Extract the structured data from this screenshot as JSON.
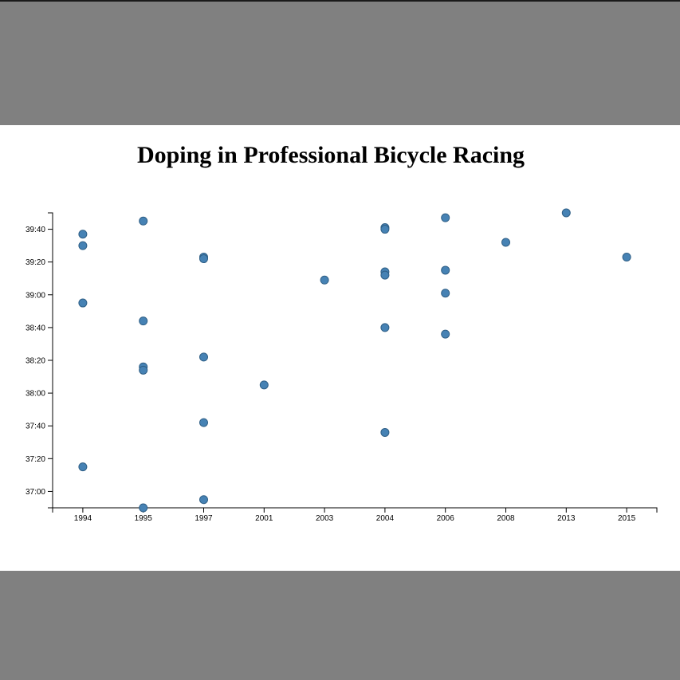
{
  "page": {
    "background_color": "#808080",
    "panel_color": "#ffffff"
  },
  "chart_data": {
    "type": "scatter",
    "title": "Doping in Professional Bicycle Racing",
    "xlabel": "",
    "ylabel": "",
    "x_categories": [
      "1994",
      "1995",
      "1997",
      "2001",
      "2003",
      "2004",
      "2006",
      "2008",
      "2013",
      "2015"
    ],
    "y_ticks": [
      "37:00",
      "37:20",
      "37:40",
      "38:00",
      "38:20",
      "38:40",
      "39:00",
      "39:20",
      "39:40"
    ],
    "ylim": [
      "36:50",
      "39:50"
    ],
    "marker_color": "#4682b4",
    "grid": false,
    "legend": "none",
    "points": [
      {
        "x": "1994",
        "y": "39:37"
      },
      {
        "x": "1994",
        "y": "39:30"
      },
      {
        "x": "1994",
        "y": "38:55"
      },
      {
        "x": "1994",
        "y": "37:15"
      },
      {
        "x": "1995",
        "y": "39:45"
      },
      {
        "x": "1995",
        "y": "38:44"
      },
      {
        "x": "1995",
        "y": "38:16"
      },
      {
        "x": "1995",
        "y": "38:14"
      },
      {
        "x": "1995",
        "y": "36:50"
      },
      {
        "x": "1997",
        "y": "39:23"
      },
      {
        "x": "1997",
        "y": "39:22"
      },
      {
        "x": "1997",
        "y": "38:22"
      },
      {
        "x": "1997",
        "y": "37:42"
      },
      {
        "x": "1997",
        "y": "36:55"
      },
      {
        "x": "2001",
        "y": "38:05"
      },
      {
        "x": "2003",
        "y": "39:09"
      },
      {
        "x": "2004",
        "y": "39:41"
      },
      {
        "x": "2004",
        "y": "39:40"
      },
      {
        "x": "2004",
        "y": "39:14"
      },
      {
        "x": "2004",
        "y": "39:12"
      },
      {
        "x": "2004",
        "y": "38:40"
      },
      {
        "x": "2004",
        "y": "37:36"
      },
      {
        "x": "2006",
        "y": "39:47"
      },
      {
        "x": "2006",
        "y": "39:15"
      },
      {
        "x": "2006",
        "y": "39:01"
      },
      {
        "x": "2006",
        "y": "38:36"
      },
      {
        "x": "2008",
        "y": "39:32"
      },
      {
        "x": "2013",
        "y": "39:50"
      },
      {
        "x": "2015",
        "y": "39:23"
      }
    ]
  }
}
